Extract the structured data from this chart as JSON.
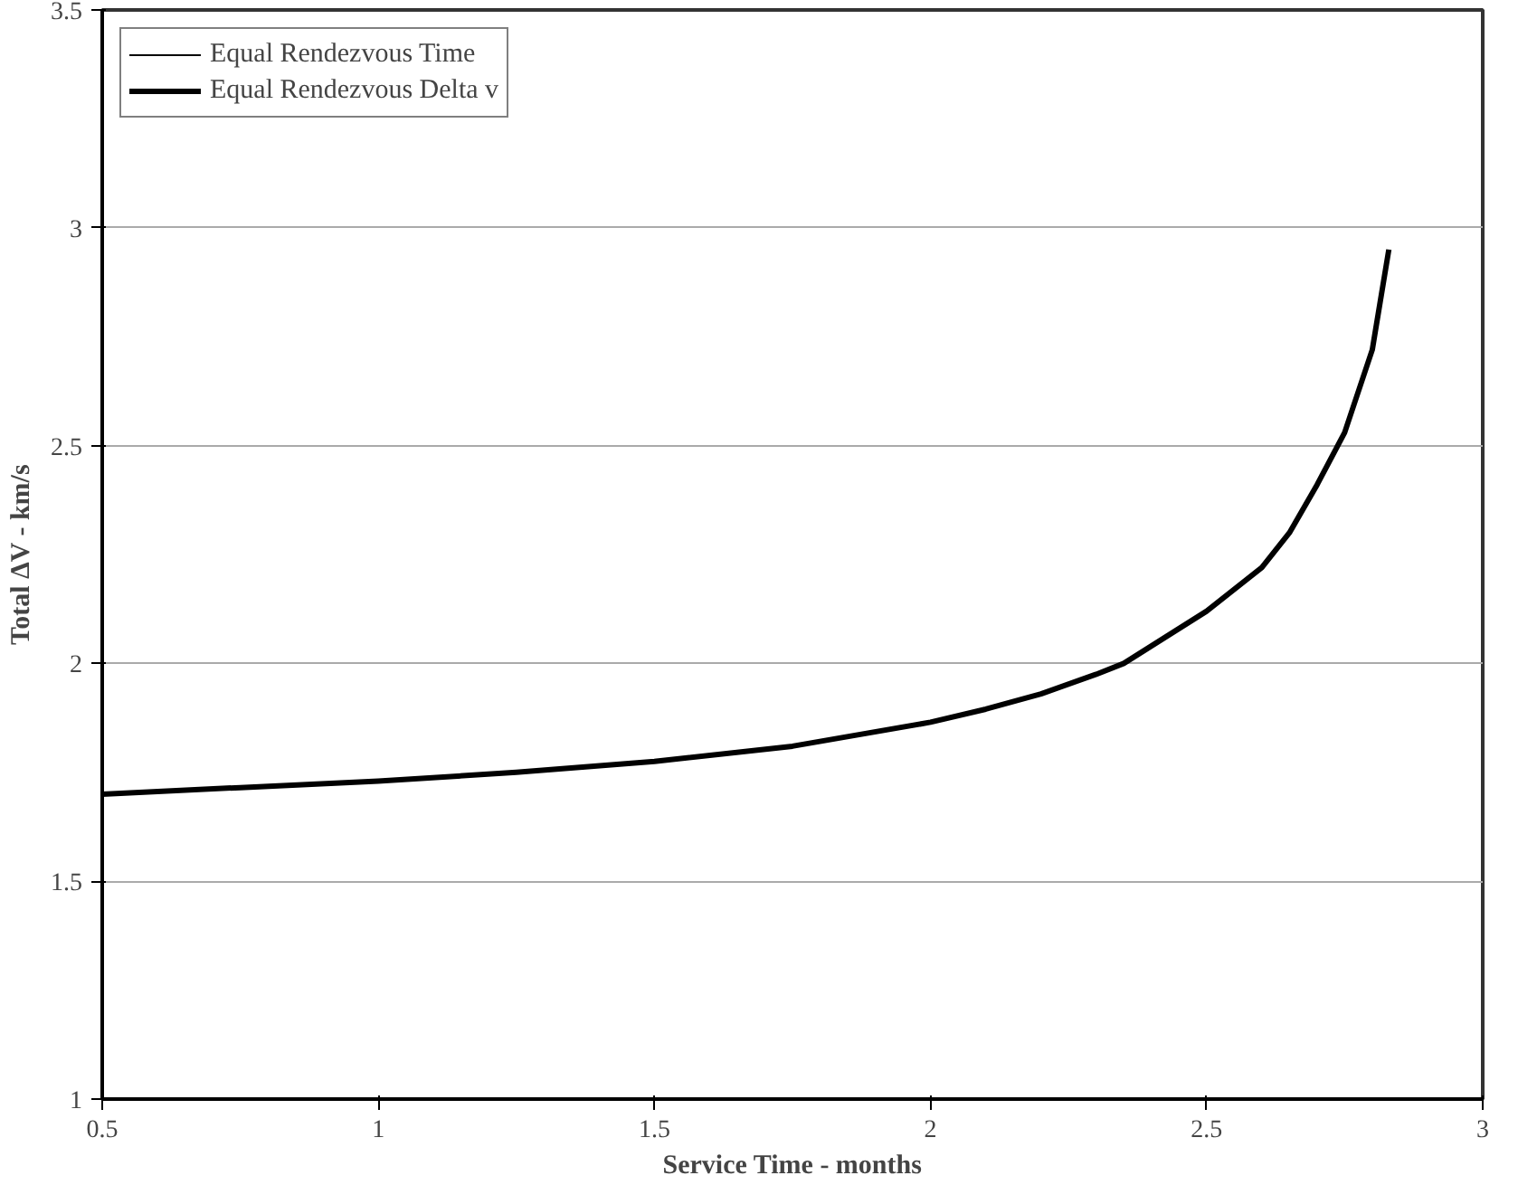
{
  "chart_data": {
    "type": "line",
    "xlabel": "Service Time - months",
    "ylabel": "Total ΔV - km/s",
    "xlim": [
      0.5,
      3
    ],
    "xticks": [
      0.5,
      1,
      1.5,
      2,
      2.5,
      3
    ],
    "ylim": [
      1,
      3.5
    ],
    "yticks": [
      1,
      1.5,
      2,
      2.5,
      3,
      3.5
    ],
    "grid": "y",
    "legend": "top left",
    "x": [
      0.5,
      0.75,
      1.0,
      1.25,
      1.5,
      1.75,
      2.0,
      2.1,
      2.2,
      2.3,
      2.35,
      2.4,
      2.5,
      2.6,
      2.65,
      2.7,
      2.75,
      2.8,
      2.83
    ],
    "series": [
      {
        "name": "Equal Rendezvous Time",
        "color": "#000000",
        "values": [
          null,
          null,
          null,
          null,
          null,
          null,
          null,
          null,
          null,
          null,
          null,
          null,
          null,
          null,
          null,
          null,
          null,
          null,
          null
        ]
      },
      {
        "name": "Equal Rendezvous Delta v",
        "color": "#000000",
        "values": [
          1.7,
          1.715,
          1.73,
          1.75,
          1.775,
          1.81,
          1.865,
          1.895,
          1.93,
          1.975,
          2.0,
          2.04,
          2.12,
          2.22,
          2.3,
          2.41,
          2.53,
          2.72,
          2.95
        ]
      }
    ]
  }
}
